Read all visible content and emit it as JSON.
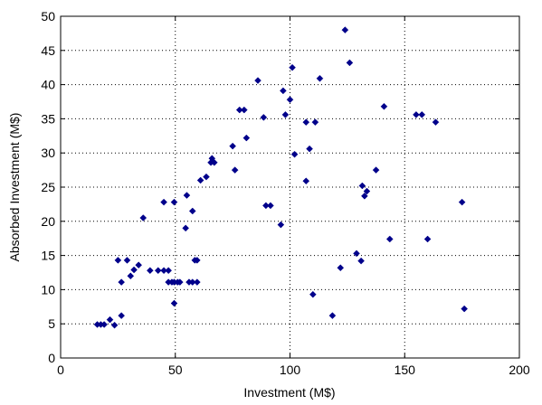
{
  "chart_data": {
    "type": "scatter",
    "xlabel": "Investment (M$)",
    "ylabel": "Absorbed Investment (M$)",
    "xlim": [
      0,
      200
    ],
    "ylim": [
      0,
      50
    ],
    "xticks": [
      "0",
      "50",
      "100",
      "150",
      "200"
    ],
    "yticks": [
      "0",
      "5",
      "10",
      "15",
      "20",
      "25",
      "30",
      "35",
      "40",
      "45",
      "50"
    ],
    "grid": "dotted",
    "marker": "diamond",
    "color": "#00008b",
    "points": [
      [
        16,
        4.9
      ],
      [
        17.5,
        4.9
      ],
      [
        19,
        4.9
      ],
      [
        21.5,
        5.6
      ],
      [
        23.5,
        4.8
      ],
      [
        26.5,
        6.2
      ],
      [
        25,
        14.3
      ],
      [
        26.5,
        11.1
      ],
      [
        29,
        14.3
      ],
      [
        30.5,
        12.0
      ],
      [
        32,
        12.9
      ],
      [
        34,
        13.6
      ],
      [
        36,
        20.5
      ],
      [
        39,
        12.8
      ],
      [
        42.5,
        12.8
      ],
      [
        45,
        12.8
      ],
      [
        47,
        12.8
      ],
      [
        45,
        22.8
      ],
      [
        49.5,
        22.8
      ],
      [
        47,
        11.1
      ],
      [
        48.5,
        11.1
      ],
      [
        49.5,
        11.1
      ],
      [
        51,
        11.1
      ],
      [
        52,
        11.1
      ],
      [
        49.5,
        8.0
      ],
      [
        54.5,
        19.0
      ],
      [
        55,
        23.8
      ],
      [
        56,
        11.1
      ],
      [
        57.5,
        11.1
      ],
      [
        59.5,
        11.1
      ],
      [
        57.5,
        21.5
      ],
      [
        58.5,
        14.3
      ],
      [
        59.5,
        14.3
      ],
      [
        61,
        26.0
      ],
      [
        63.5,
        26.5
      ],
      [
        65.5,
        28.6
      ],
      [
        66,
        29.2
      ],
      [
        67,
        28.6
      ],
      [
        75,
        31.0
      ],
      [
        76,
        27.5
      ],
      [
        78,
        36.3
      ],
      [
        80,
        36.3
      ],
      [
        81,
        32.2
      ],
      [
        86,
        40.6
      ],
      [
        88.5,
        35.2
      ],
      [
        89.5,
        22.3
      ],
      [
        91.5,
        22.3
      ],
      [
        96,
        19.5
      ],
      [
        97,
        39.1
      ],
      [
        98,
        35.6
      ],
      [
        100,
        37.8
      ],
      [
        101,
        42.5
      ],
      [
        102,
        29.8
      ],
      [
        107,
        34.5
      ],
      [
        107,
        25.9
      ],
      [
        108.5,
        30.6
      ],
      [
        110,
        9.3
      ],
      [
        111,
        34.5
      ],
      [
        113,
        40.9
      ],
      [
        118.5,
        6.2
      ],
      [
        122,
        13.2
      ],
      [
        124,
        48.0
      ],
      [
        126,
        43.2
      ],
      [
        129,
        15.3
      ],
      [
        131,
        14.2
      ],
      [
        131.5,
        25.2
      ],
      [
        132.5,
        23.7
      ],
      [
        133.5,
        24.4
      ],
      [
        137.5,
        27.5
      ],
      [
        141,
        36.8
      ],
      [
        143.5,
        17.4
      ],
      [
        155,
        35.6
      ],
      [
        157.5,
        35.6
      ],
      [
        160,
        17.4
      ],
      [
        163.5,
        34.5
      ],
      [
        175,
        22.8
      ],
      [
        176,
        7.2
      ]
    ]
  }
}
